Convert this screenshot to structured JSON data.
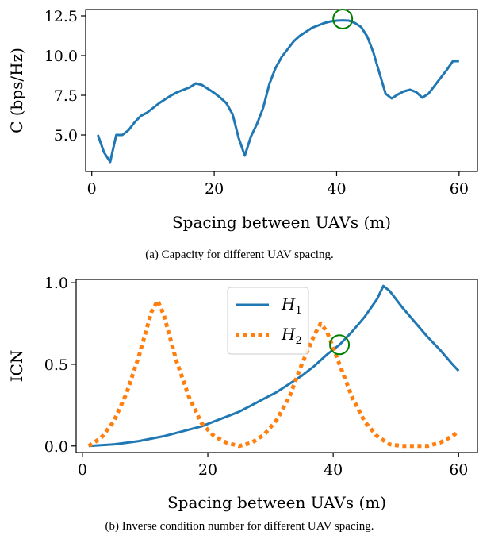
{
  "chart_data": [
    {
      "type": "line",
      "caption": "(a) Capacity for different UAV spacing.",
      "xlabel": "Spacing between UAVs (m)",
      "ylabel": "C (bps/Hz)",
      "xlim": [
        -1,
        63
      ],
      "ylim": [
        2.7,
        12.9
      ],
      "xticks": [
        0,
        20,
        40,
        60
      ],
      "yticks": [
        5.0,
        7.5,
        10.0,
        12.5
      ],
      "ytick_labels": [
        "5.0",
        "7.5",
        "10.0",
        "12.5"
      ],
      "grid": false,
      "series": [
        {
          "color": "#1f77b4",
          "style": "solid",
          "x": [
            1,
            2,
            3,
            4,
            5,
            6,
            7,
            8,
            9,
            10,
            11,
            12,
            13,
            14,
            15,
            16,
            17,
            18,
            19,
            20,
            21,
            22,
            23,
            24,
            25,
            26,
            27,
            28,
            29,
            30,
            31,
            32,
            33,
            34,
            35,
            36,
            37,
            38,
            39,
            40,
            41,
            42,
            43,
            44,
            45,
            46,
            47,
            48,
            49,
            50,
            51,
            52,
            53,
            54,
            55,
            56,
            57,
            58,
            59,
            60
          ],
          "y": [
            5.0,
            3.9,
            3.3,
            5.0,
            5.0,
            5.3,
            5.8,
            6.2,
            6.4,
            6.7,
            7.0,
            7.25,
            7.5,
            7.7,
            7.85,
            8.0,
            8.25,
            8.15,
            7.9,
            7.65,
            7.35,
            7.0,
            6.3,
            4.8,
            3.7,
            4.9,
            5.7,
            6.7,
            8.2,
            9.2,
            9.9,
            10.4,
            10.9,
            11.25,
            11.5,
            11.75,
            11.9,
            12.05,
            12.15,
            12.2,
            12.22,
            12.2,
            12.05,
            11.8,
            11.2,
            10.2,
            8.9,
            7.6,
            7.3,
            7.55,
            7.75,
            7.85,
            7.7,
            7.35,
            7.6,
            8.1,
            8.6,
            9.1,
            9.65,
            9.65
          ]
        }
      ],
      "marker": {
        "x": 41,
        "y": 12.3,
        "shape": "circle",
        "color": "#008000"
      }
    },
    {
      "type": "line",
      "caption": "(b) Inverse condition number for different UAV spacing.",
      "xlabel": "Spacing between UAVs (m)",
      "ylabel": "ICN",
      "xlim": [
        -1,
        63
      ],
      "ylim": [
        -0.04,
        1.02
      ],
      "xticks": [
        0,
        20,
        40,
        60
      ],
      "yticks": [
        0.0,
        0.5,
        1.0
      ],
      "ytick_labels": [
        "0.0",
        "0.5",
        "1.0"
      ],
      "grid": false,
      "legend_position": "top-center",
      "series": [
        {
          "name": "H",
          "name_sub": "1",
          "color": "#1f77b4",
          "style": "solid",
          "x": [
            1,
            3,
            5,
            7,
            9,
            11,
            13,
            15,
            17,
            19,
            21,
            23,
            25,
            27,
            29,
            31,
            33,
            35,
            37,
            39,
            41,
            43,
            45,
            47,
            48,
            49,
            51,
            53,
            55,
            57,
            59,
            60
          ],
          "y": [
            0.0,
            0.005,
            0.01,
            0.02,
            0.03,
            0.045,
            0.06,
            0.08,
            0.1,
            0.12,
            0.15,
            0.18,
            0.21,
            0.25,
            0.29,
            0.33,
            0.38,
            0.43,
            0.49,
            0.56,
            0.62,
            0.7,
            0.79,
            0.9,
            0.98,
            0.95,
            0.85,
            0.76,
            0.67,
            0.59,
            0.5,
            0.46
          ]
        },
        {
          "name": "H",
          "name_sub": "2",
          "color": "#ff7f0e",
          "style": "dotted",
          "x": [
            1,
            3,
            5,
            7,
            9,
            11,
            12,
            13,
            15,
            17,
            19,
            21,
            23,
            25,
            27,
            29,
            31,
            33,
            35,
            37,
            38,
            39,
            41,
            43,
            45,
            47,
            49,
            51,
            53,
            55,
            57,
            59,
            60
          ],
          "y": [
            0.0,
            0.05,
            0.15,
            0.32,
            0.55,
            0.82,
            0.89,
            0.8,
            0.52,
            0.3,
            0.14,
            0.06,
            0.02,
            0.0,
            0.02,
            0.07,
            0.16,
            0.3,
            0.5,
            0.68,
            0.75,
            0.7,
            0.5,
            0.3,
            0.15,
            0.06,
            0.01,
            0.0,
            0.0,
            0.0,
            0.02,
            0.06,
            0.09
          ]
        }
      ],
      "marker": {
        "x": 41,
        "y": 0.62,
        "shape": "circle",
        "color": "#008000"
      }
    }
  ]
}
